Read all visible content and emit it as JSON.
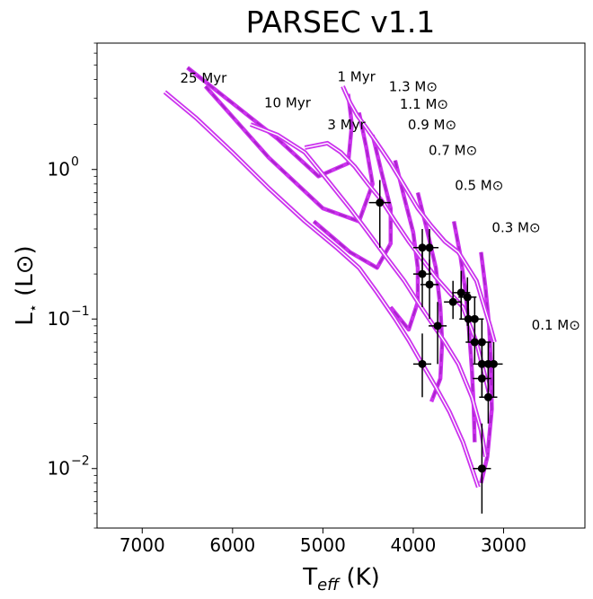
{
  "chart_data": {
    "type": "scatter",
    "title": "PARSEC v1.1",
    "xlabel_main": "T",
    "xlabel_sub": "eff",
    "xlabel_unit": "(K)",
    "ylabel_main": "L",
    "ylabel_star": "⋆",
    "ylabel_unit": "(L⊙)",
    "x_axis": {
      "scale": "linear",
      "inverted": true,
      "xlim": [
        7500,
        2100
      ],
      "ticks": [
        7000,
        6000,
        5000,
        4000,
        3000
      ],
      "tick_labels": [
        "7000",
        "6000",
        "5000",
        "4000",
        "3000"
      ]
    },
    "y_axis": {
      "scale": "log",
      "ylim": [
        0.004,
        7.0
      ],
      "major_ticks": [
        0.01,
        0.1,
        1.0
      ],
      "tick_labels": [
        "10",
        "10",
        "10"
      ],
      "tick_exponents": [
        "−2",
        "−1",
        "0"
      ]
    },
    "colors": {
      "isochrone": "#cc33ee",
      "isochrone_core": "#ffffff",
      "track": "#aa22cc",
      "points": "#000000"
    },
    "isochrones": [
      {
        "label": "1 Myr",
        "points": [
          [
            4780,
            3.6
          ],
          [
            4700,
            2.8
          ],
          [
            4620,
            2.3
          ],
          [
            4520,
            1.9
          ],
          [
            4400,
            1.5
          ],
          [
            4250,
            1.1
          ],
          [
            4100,
            0.78
          ],
          [
            3950,
            0.55
          ],
          [
            3800,
            0.42
          ],
          [
            3650,
            0.33
          ],
          [
            3500,
            0.28
          ],
          [
            3300,
            0.18
          ],
          [
            3150,
            0.09
          ],
          [
            3100,
            0.07
          ]
        ]
      },
      {
        "label": "3 Myr",
        "points": [
          [
            5200,
            1.4
          ],
          [
            4950,
            1.5
          ],
          [
            4800,
            1.3
          ],
          [
            4650,
            1.05
          ],
          [
            4500,
            0.8
          ],
          [
            4350,
            0.62
          ],
          [
            4200,
            0.45
          ],
          [
            4050,
            0.33
          ],
          [
            3900,
            0.25
          ],
          [
            3750,
            0.19
          ],
          [
            3600,
            0.15
          ],
          [
            3450,
            0.12
          ],
          [
            3300,
            0.07
          ],
          [
            3200,
            0.04
          ],
          [
            3150,
            0.03
          ]
        ]
      },
      {
        "label": "10 Myr",
        "points": [
          [
            5800,
            2.0
          ],
          [
            5500,
            1.7
          ],
          [
            5200,
            1.3
          ],
          [
            4950,
            0.85
          ],
          [
            4700,
            0.55
          ],
          [
            4500,
            0.38
          ],
          [
            4300,
            0.26
          ],
          [
            4100,
            0.18
          ],
          [
            3950,
            0.13
          ],
          [
            3800,
            0.095
          ],
          [
            3650,
            0.07
          ],
          [
            3500,
            0.05
          ],
          [
            3350,
            0.03
          ],
          [
            3250,
            0.018
          ],
          [
            3200,
            0.012
          ]
        ]
      },
      {
        "label": "25 Myr",
        "points": [
          [
            6750,
            3.3
          ],
          [
            6400,
            2.2
          ],
          [
            6000,
            1.3
          ],
          [
            5600,
            0.75
          ],
          [
            5200,
            0.45
          ],
          [
            4850,
            0.3
          ],
          [
            4600,
            0.22
          ],
          [
            4400,
            0.15
          ],
          [
            4200,
            0.1
          ],
          [
            4050,
            0.072
          ],
          [
            3900,
            0.05
          ],
          [
            3750,
            0.035
          ],
          [
            3600,
            0.024
          ],
          [
            3450,
            0.015
          ],
          [
            3350,
            0.01
          ],
          [
            3280,
            0.0075
          ]
        ]
      }
    ],
    "tracks": [
      {
        "label": "1.3 M⊙",
        "points": [
          [
            4720,
            3.2
          ],
          [
            4680,
            2.0
          ],
          [
            4720,
            1.1
          ],
          [
            5050,
            0.9
          ],
          [
            5500,
            1.6
          ],
          [
            6500,
            4.8
          ]
        ]
      },
      {
        "label": "1.1 M⊙",
        "points": [
          [
            4600,
            2.4
          ],
          [
            4520,
            1.4
          ],
          [
            4450,
            0.8
          ],
          [
            4600,
            0.45
          ],
          [
            5000,
            0.55
          ],
          [
            5600,
            1.2
          ],
          [
            6300,
            3.6
          ]
        ]
      },
      {
        "label": "0.9 M⊙",
        "points": [
          [
            4450,
            1.7
          ],
          [
            4350,
            0.95
          ],
          [
            4250,
            0.55
          ],
          [
            4250,
            0.32
          ],
          [
            4400,
            0.22
          ],
          [
            4700,
            0.28
          ],
          [
            5100,
            0.45
          ]
        ]
      },
      {
        "label": "0.7 M⊙",
        "points": [
          [
            4200,
            1.15
          ],
          [
            4100,
            0.65
          ],
          [
            4000,
            0.38
          ],
          [
            3950,
            0.22
          ],
          [
            3950,
            0.13
          ],
          [
            4050,
            0.085
          ],
          [
            4250,
            0.12
          ]
        ]
      },
      {
        "label": "0.5 M⊙",
        "points": [
          [
            3950,
            0.7
          ],
          [
            3850,
            0.4
          ],
          [
            3750,
            0.22
          ],
          [
            3700,
            0.12
          ],
          [
            3680,
            0.07
          ],
          [
            3700,
            0.04
          ],
          [
            3800,
            0.028
          ]
        ]
      },
      {
        "label": "0.3 M⊙",
        "points": [
          [
            3550,
            0.45
          ],
          [
            3480,
            0.27
          ],
          [
            3420,
            0.15
          ],
          [
            3380,
            0.08
          ],
          [
            3350,
            0.045
          ],
          [
            3330,
            0.025
          ],
          [
            3320,
            0.015
          ]
        ]
      },
      {
        "label": "0.1 M⊙",
        "points": [
          [
            3250,
            0.28
          ],
          [
            3200,
            0.16
          ],
          [
            3160,
            0.09
          ],
          [
            3140,
            0.05
          ],
          [
            3130,
            0.025
          ],
          [
            3180,
            0.012
          ],
          [
            3250,
            0.008
          ]
        ]
      }
    ],
    "annotations": [
      {
        "text": "25 Myr",
        "x": 6580,
        "y": 3.8
      },
      {
        "text": "10 Myr",
        "x": 5650,
        "y": 2.6
      },
      {
        "text": "3 Myr",
        "x": 4950,
        "y": 1.85
      },
      {
        "text": "1 Myr",
        "x": 4840,
        "y": 3.9
      },
      {
        "text": "1.3 M⊙",
        "x": 4270,
        "y": 3.35
      },
      {
        "text": "1.1 M⊙",
        "x": 4150,
        "y": 2.55
      },
      {
        "text": "0.9 M⊙",
        "x": 4060,
        "y": 1.85
      },
      {
        "text": "0.7 M⊙",
        "x": 3830,
        "y": 1.25
      },
      {
        "text": "0.5 M⊙",
        "x": 3540,
        "y": 0.73
      },
      {
        "text": "0.3 M⊙",
        "x": 3130,
        "y": 0.38
      },
      {
        "text": "0.1 M⊙",
        "x": 2690,
        "y": 0.085
      }
    ],
    "stars": [
      {
        "teff": 4370,
        "lum": 0.6,
        "xerr": 120,
        "ylo": 0.3,
        "yhi": 0.85
      },
      {
        "teff": 3900,
        "lum": 0.3,
        "xerr": 100,
        "ylo": 0.2,
        "yhi": 0.4
      },
      {
        "teff": 3820,
        "lum": 0.3,
        "xerr": 100,
        "ylo": 0.2,
        "yhi": 0.4
      },
      {
        "teff": 3900,
        "lum": 0.2,
        "xerr": 100,
        "ylo": 0.12,
        "yhi": 0.3
      },
      {
        "teff": 3820,
        "lum": 0.17,
        "xerr": 100,
        "ylo": 0.1,
        "yhi": 0.25
      },
      {
        "teff": 3900,
        "lum": 0.05,
        "xerr": 100,
        "ylo": 0.03,
        "yhi": 0.08
      },
      {
        "teff": 3730,
        "lum": 0.09,
        "xerr": 100,
        "ylo": 0.05,
        "yhi": 0.13
      },
      {
        "teff": 3560,
        "lum": 0.13,
        "xerr": 100,
        "ylo": 0.1,
        "yhi": 0.18
      },
      {
        "teff": 3470,
        "lum": 0.15,
        "xerr": 100,
        "ylo": 0.1,
        "yhi": 0.21
      },
      {
        "teff": 3400,
        "lum": 0.14,
        "xerr": 100,
        "ylo": 0.09,
        "yhi": 0.19
      },
      {
        "teff": 3390,
        "lum": 0.1,
        "xerr": 100,
        "ylo": 0.07,
        "yhi": 0.14
      },
      {
        "teff": 3320,
        "lum": 0.1,
        "xerr": 100,
        "ylo": 0.07,
        "yhi": 0.14
      },
      {
        "teff": 3320,
        "lum": 0.07,
        "xerr": 100,
        "ylo": 0.05,
        "yhi": 0.1
      },
      {
        "teff": 3240,
        "lum": 0.07,
        "xerr": 100,
        "ylo": 0.05,
        "yhi": 0.1
      },
      {
        "teff": 3240,
        "lum": 0.05,
        "xerr": 100,
        "ylo": 0.03,
        "yhi": 0.07
      },
      {
        "teff": 3170,
        "lum": 0.05,
        "xerr": 100,
        "ylo": 0.03,
        "yhi": 0.07
      },
      {
        "teff": 3110,
        "lum": 0.05,
        "xerr": 100,
        "ylo": 0.03,
        "yhi": 0.07
      },
      {
        "teff": 3240,
        "lum": 0.04,
        "xerr": 100,
        "ylo": 0.03,
        "yhi": 0.06
      },
      {
        "teff": 3170,
        "lum": 0.03,
        "xerr": 100,
        "ylo": 0.02,
        "yhi": 0.05
      },
      {
        "teff": 3240,
        "lum": 0.01,
        "xerr": 100,
        "ylo": 0.005,
        "yhi": 0.02
      }
    ]
  }
}
